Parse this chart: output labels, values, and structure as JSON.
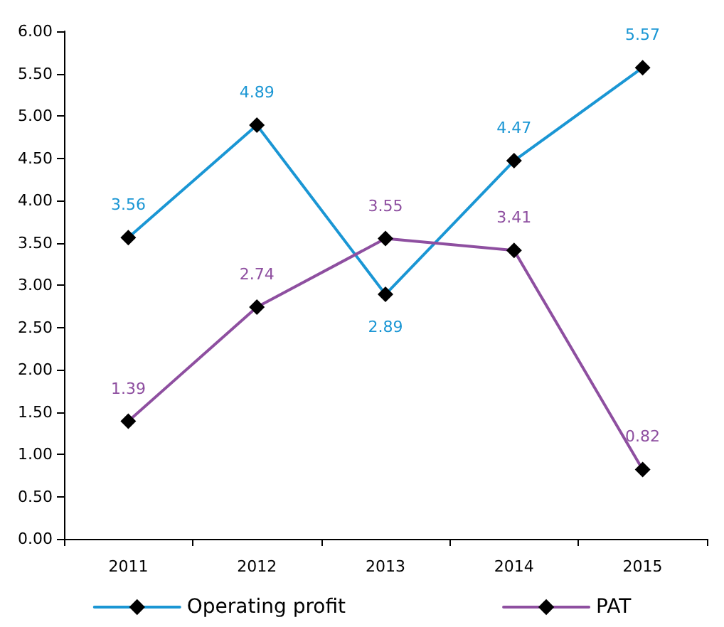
{
  "chart_data": {
    "type": "line",
    "categories": [
      "2011",
      "2012",
      "2013",
      "2014",
      "2015"
    ],
    "series": [
      {
        "name": "Operating profit",
        "color": "#1a96d4",
        "values": [
          3.56,
          4.89,
          2.89,
          4.47,
          5.57
        ]
      },
      {
        "name": "PAT",
        "color": "#8e4fa0",
        "values": [
          1.39,
          2.74,
          3.55,
          3.41,
          0.82
        ]
      }
    ],
    "ylim": [
      0,
      6
    ],
    "yticks": [
      {
        "value": 0,
        "label": "0.00"
      },
      {
        "value": 0.5,
        "label": "0.50"
      },
      {
        "value": 1,
        "label": "1.00"
      },
      {
        "value": 1.5,
        "label": "1.50"
      },
      {
        "value": 2,
        "label": "2.00"
      },
      {
        "value": 2.5,
        "label": "2.50"
      },
      {
        "value": 3,
        "label": "3.00"
      },
      {
        "value": 3.5,
        "label": "3.50"
      },
      {
        "value": 4,
        "label": "4.00"
      },
      {
        "value": 4.5,
        "label": "4.50"
      },
      {
        "value": 5,
        "label": "5.00"
      },
      {
        "value": 5.5,
        "label": "5.50"
      },
      {
        "value": 6,
        "label": "6.00"
      }
    ],
    "grid": false,
    "legend": "bottom",
    "marker": "diamond",
    "line_style": "solid",
    "data_labels": true
  }
}
